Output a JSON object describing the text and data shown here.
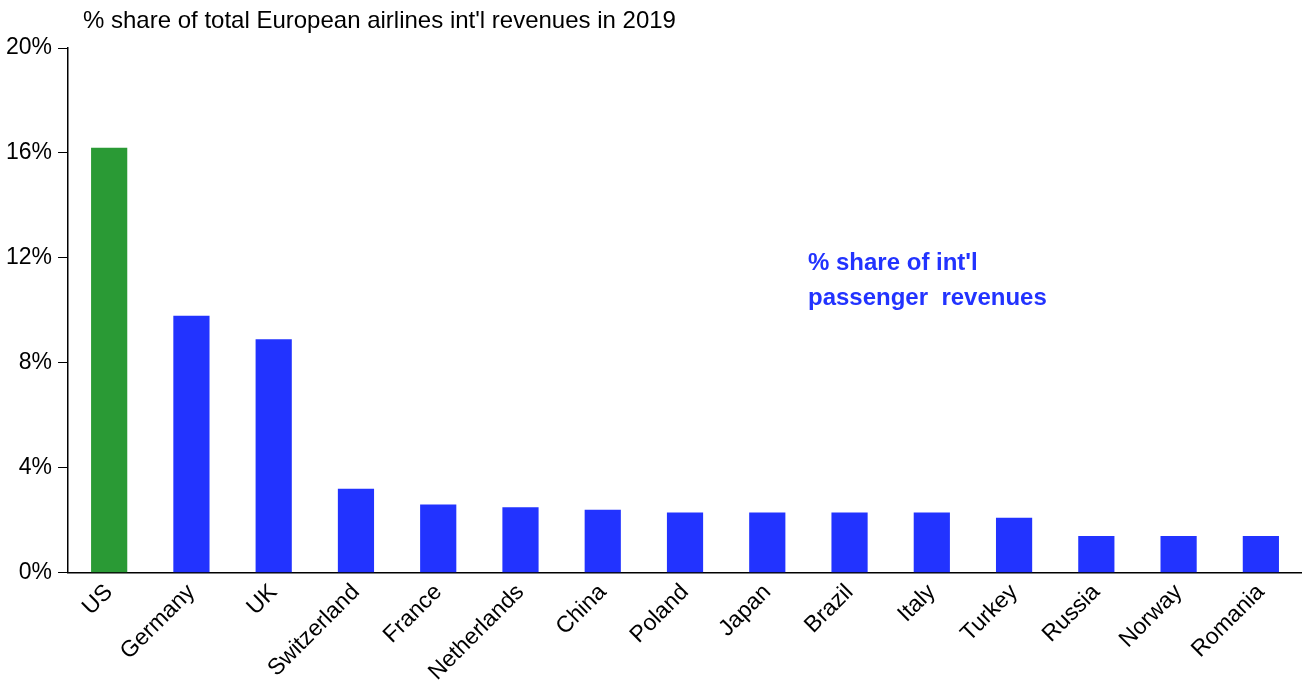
{
  "chart_data": {
    "type": "bar",
    "title": "% share of total European airlines int'l revenues in 2019",
    "categories": [
      "US",
      "Germany",
      "UK",
      "Switzerland",
      "France",
      "Netherlands",
      "China",
      "Poland",
      "Japan",
      "Brazil",
      "Italy",
      "Turkey",
      "Russia",
      "Norway",
      "Romania"
    ],
    "values": [
      16.2,
      9.8,
      8.9,
      3.2,
      2.6,
      2.5,
      2.4,
      2.3,
      2.3,
      2.3,
      2.3,
      2.1,
      1.4,
      1.4,
      1.4
    ],
    "colors": [
      "#2a9a35",
      "#2233ff",
      "#2233ff",
      "#2233ff",
      "#2233ff",
      "#2233ff",
      "#2233ff",
      "#2233ff",
      "#2233ff",
      "#2233ff",
      "#2233ff",
      "#2233ff",
      "#2233ff",
      "#2233ff",
      "#2233ff"
    ],
    "ylim": [
      0,
      20
    ],
    "yticks": [
      {
        "value": 0,
        "label": "0%"
      },
      {
        "value": 4,
        "label": "4%"
      },
      {
        "value": 8,
        "label": "8%"
      },
      {
        "value": 12,
        "label": "12%"
      },
      {
        "value": 16,
        "label": "16%"
      },
      {
        "value": 20,
        "label": "20%"
      }
    ],
    "grid": false,
    "legend": false,
    "annotations": [
      "% share of int'l\npassenger  revenues"
    ]
  }
}
